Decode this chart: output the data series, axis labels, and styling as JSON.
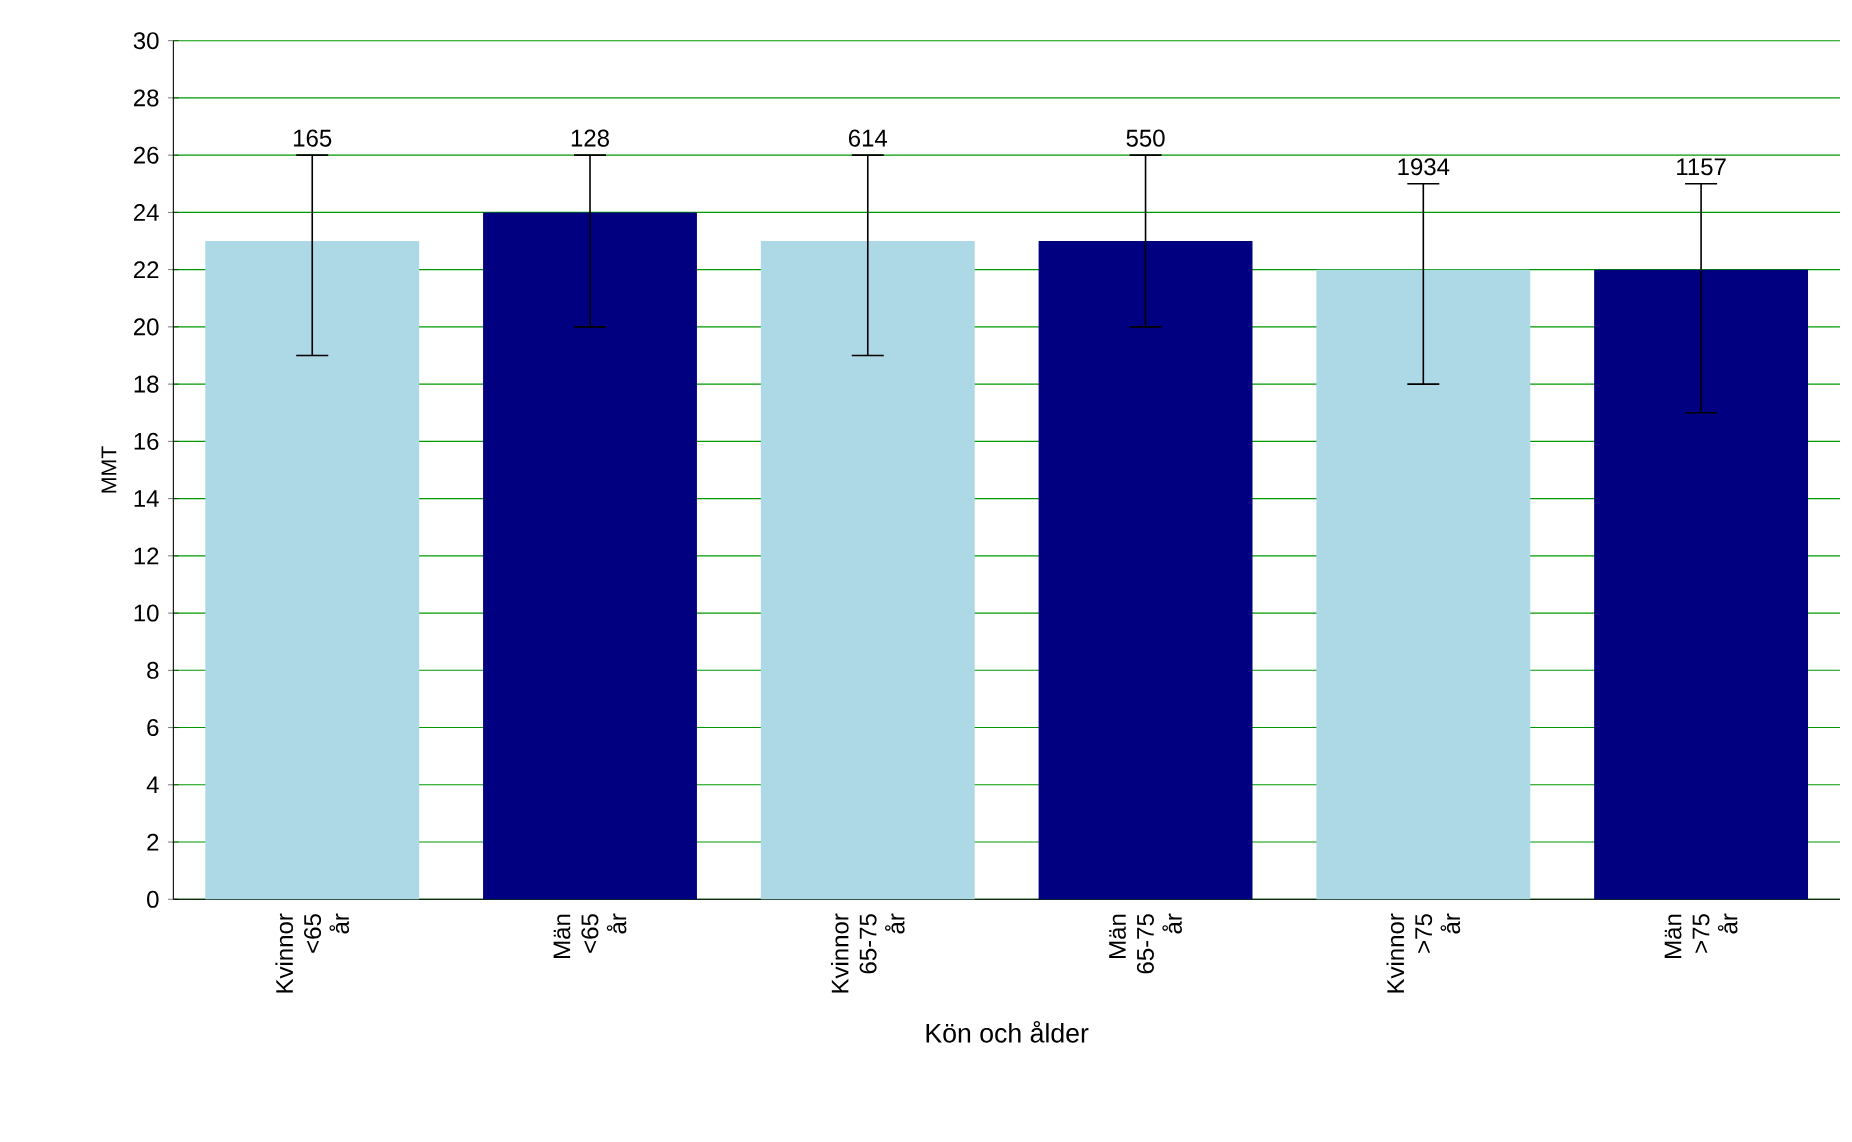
{
  "chart_data": {
    "type": "bar",
    "xlabel": "Kön och ålder",
    "ylabel": "MMT",
    "categories": [
      "Kvinnor <65 år",
      "Män <65 år",
      "Kvinnor 65-75 år",
      "Män 65-75 år",
      "Kvinnor >75 år",
      "Män >75 år"
    ],
    "values": [
      23,
      24,
      23,
      23,
      22,
      22
    ],
    "colors": [
      "#add8e6",
      "#000080",
      "#add8e6",
      "#000080",
      "#add8e6",
      "#000080"
    ],
    "errors": [
      [
        19,
        26
      ],
      [
        20,
        26
      ],
      [
        19,
        26
      ],
      [
        20,
        26
      ],
      [
        18,
        25
      ],
      [
        17,
        25
      ]
    ],
    "annotations": [
      {
        "text": "165",
        "x": "Kvinnor <65 år",
        "y": 26
      },
      {
        "text": "128",
        "x": "Män <65 år",
        "y": 26
      },
      {
        "text": "614",
        "x": "Kvinnor 65-75 år",
        "y": 26
      },
      {
        "text": "550",
        "x": "Män 65-75 år",
        "y": 26
      },
      {
        "text": "1934",
        "x": "Kvinnor >75 år",
        "y": 25
      },
      {
        "text": "1157",
        "x": "Män >75 år",
        "y": 25
      }
    ],
    "ylim": [
      0,
      30
    ],
    "yticks": [
      0,
      2,
      4,
      6,
      8,
      10,
      12,
      14,
      16,
      18,
      20,
      22,
      24,
      26,
      28,
      30
    ],
    "grid": "y"
  }
}
